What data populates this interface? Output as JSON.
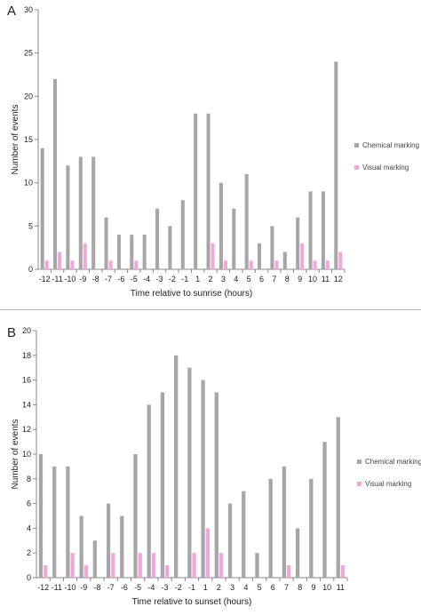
{
  "chart_data": [
    {
      "panel": "A",
      "type": "bar",
      "xlabel": "Time relative to sunrise (hours)",
      "ylabel": "Number of events",
      "ylim": [
        0,
        30
      ],
      "yticks": [
        0,
        5,
        10,
        15,
        20,
        25,
        30
      ],
      "categories": [
        "-12",
        "-11",
        "-10",
        "-9",
        "-8",
        "-7",
        "-6",
        "-5",
        "-4",
        "-3",
        "-2",
        "-1",
        "1",
        "2",
        "3",
        "4",
        "5",
        "6",
        "7",
        "8",
        "9",
        "10",
        "11",
        "12"
      ],
      "series": [
        {
          "name": "Chemical marking",
          "color": "#a6a6a6",
          "values": [
            14,
            22,
            12,
            13,
            13,
            6,
            4,
            4,
            4,
            7,
            5,
            8,
            18,
            18,
            10,
            7,
            11,
            3,
            5,
            2,
            6,
            9,
            9,
            24
          ]
        },
        {
          "name": "Visual marking",
          "color": "#f4a6d7",
          "values": [
            1,
            2,
            1,
            3,
            0,
            1,
            0,
            1,
            0,
            0,
            0,
            0,
            0,
            3,
            1,
            0,
            1,
            0,
            1,
            0,
            3,
            1,
            1,
            2
          ]
        }
      ],
      "legend": "right",
      "grid": false
    },
    {
      "panel": "B",
      "type": "bar",
      "xlabel": "Time relative to sunset (hours)",
      "ylabel": "Number of events",
      "ylim": [
        0,
        20
      ],
      "yticks": [
        0,
        2,
        4,
        6,
        8,
        10,
        12,
        14,
        16,
        18,
        20
      ],
      "categories": [
        "-12",
        "-11",
        "-10",
        "-9",
        "-8",
        "-7",
        "-6",
        "-5",
        "-4",
        "-3",
        "-2",
        "-1",
        "1",
        "2",
        "3",
        "4",
        "5",
        "6",
        "7",
        "8",
        "9",
        "10",
        "11"
      ],
      "series": [
        {
          "name": "Chemical marking",
          "color": "#a6a6a6",
          "values": [
            10,
            9,
            9,
            5,
            3,
            6,
            5,
            10,
            14,
            15,
            18,
            17,
            16,
            15,
            6,
            7,
            2,
            8,
            9,
            4,
            8,
            11,
            13
          ]
        },
        {
          "name": "Visual marking",
          "color": "#f4a6d7",
          "values": [
            1,
            0,
            2,
            1,
            0,
            2,
            0,
            2,
            2,
            1,
            0,
            2,
            4,
            2,
            0,
            0,
            0,
            0,
            1,
            0,
            0,
            0,
            1
          ]
        }
      ],
      "legend": "right",
      "grid": false
    }
  ]
}
